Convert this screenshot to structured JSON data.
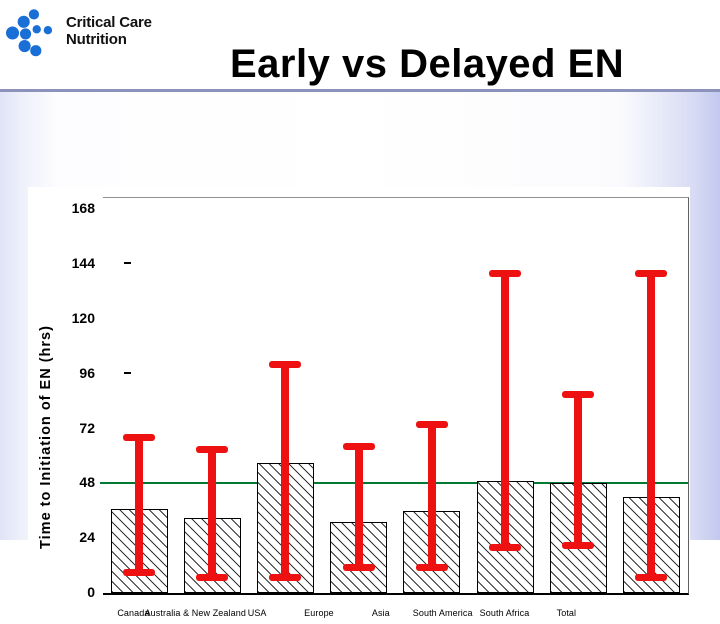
{
  "slide": {
    "logo": {
      "icon": "ccn-dots-logo",
      "icon_color": "#1a6fd6",
      "text_line1": "Critical Care",
      "text_line2": "Nutrition"
    },
    "title": "Early vs Delayed EN",
    "separator_color": "#8d92bb",
    "background_edge_left": "#dfe3f5",
    "background_edge_right": "#c3c8ef"
  },
  "chart_data": {
    "type": "bar",
    "title": "Early vs Delayed EN",
    "xlabel": "",
    "ylabel": "Time  to  Initiation  of  EN  (hrs)",
    "ylim": [
      0,
      173
    ],
    "yticks": [
      168,
      144,
      120,
      96,
      72,
      48,
      24,
      0
    ],
    "minor_tick_dashes": [
      144,
      96
    ],
    "grid": false,
    "legend": "none",
    "reference_line": {
      "value": 48,
      "color": "#007a33"
    },
    "categories": [
      "Canada",
      "Australia & New Zealand",
      "USA",
      "Europe",
      "Asia",
      "South America",
      "South Africa",
      "Total"
    ],
    "series": [
      {
        "name": "median_time_to_EN_hrs",
        "values": [
          37,
          33,
          57,
          31,
          36,
          49,
          48,
          42
        ]
      },
      {
        "name": "error_low_hrs",
        "values": [
          9,
          7,
          7,
          11,
          11,
          20,
          21,
          7
        ]
      },
      {
        "name": "error_high_hrs",
        "values": [
          68,
          63,
          100,
          64,
          74,
          140,
          87,
          140
        ]
      }
    ],
    "bar_fill": "#ffffff",
    "bar_hatch": "diagonal-backslash",
    "bar_border_color": "#000000",
    "error_bar_color": "#ee1111"
  }
}
